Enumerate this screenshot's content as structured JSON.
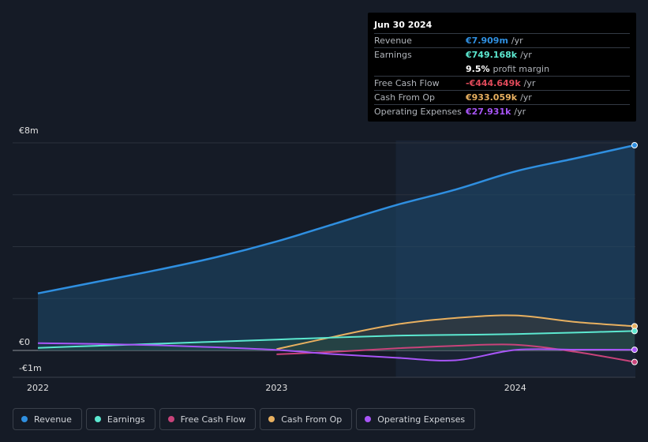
{
  "tooltip": {
    "date": "Jun 30 2024",
    "rows": [
      {
        "label": "Revenue",
        "value": "€7.909m",
        "unit": "/yr",
        "color": "#2f8fe0"
      },
      {
        "label": "Earnings",
        "value": "€749.168k",
        "unit": "/yr",
        "color": "#5ce8d0"
      },
      {
        "label": "",
        "value": "9.5%",
        "unit": "profit margin",
        "color": "#ffffff"
      },
      {
        "label": "Free Cash Flow",
        "value": "-€444.649k",
        "unit": "/yr",
        "color": "#e04a5a"
      },
      {
        "label": "Cash From Op",
        "value": "€933.059k",
        "unit": "/yr",
        "color": "#e8b060"
      },
      {
        "label": "Operating Expenses",
        "value": "€27.931k",
        "unit": "/yr",
        "color": "#a855f7"
      }
    ]
  },
  "legend": [
    {
      "label": "Revenue",
      "color": "#2f8fe0"
    },
    {
      "label": "Earnings",
      "color": "#5ce8d0"
    },
    {
      "label": "Free Cash Flow",
      "color": "#c8437a"
    },
    {
      "label": "Cash From Op",
      "color": "#e8b060"
    },
    {
      "label": "Operating Expenses",
      "color": "#a855f7"
    }
  ],
  "chart_data": {
    "type": "line",
    "title": "",
    "xlabel": "",
    "ylabel": "",
    "y_tick_labels": [
      "€8m",
      "€0",
      "-€1m"
    ],
    "x_tick_labels": [
      "2022",
      "2023",
      "2024"
    ],
    "ylim": [
      -1,
      8
    ],
    "xlim": [
      2022.0,
      2024.5
    ],
    "series": [
      {
        "name": "Revenue",
        "color": "#2f8fe0",
        "x": [
          2022.0,
          2022.25,
          2022.5,
          2022.75,
          2023.0,
          2023.25,
          2023.5,
          2023.75,
          2024.0,
          2024.25,
          2024.5
        ],
        "values": [
          2.2,
          2.65,
          3.1,
          3.6,
          4.2,
          4.9,
          5.6,
          6.2,
          6.9,
          7.4,
          7.909
        ]
      },
      {
        "name": "Earnings",
        "color": "#5ce8d0",
        "x": [
          2022.0,
          2022.25,
          2022.5,
          2022.75,
          2023.0,
          2023.25,
          2023.5,
          2023.75,
          2024.0,
          2024.25,
          2024.5
        ],
        "values": [
          0.1,
          0.18,
          0.26,
          0.34,
          0.42,
          0.5,
          0.57,
          0.6,
          0.63,
          0.69,
          0.749
        ]
      },
      {
        "name": "Free Cash Flow",
        "color": "#c8437a",
        "x": [
          2023.0,
          2023.25,
          2023.5,
          2023.75,
          2024.0,
          2024.25,
          2024.5
        ],
        "values": [
          -0.15,
          -0.05,
          0.08,
          0.18,
          0.22,
          -0.05,
          -0.445
        ]
      },
      {
        "name": "Cash From Op",
        "color": "#e8b060",
        "x": [
          2023.0,
          2023.25,
          2023.5,
          2023.75,
          2024.0,
          2024.25,
          2024.5
        ],
        "values": [
          0.05,
          0.55,
          1.0,
          1.25,
          1.35,
          1.1,
          0.933
        ]
      },
      {
        "name": "Operating Expenses",
        "color": "#a855f7",
        "x": [
          2022.0,
          2022.25,
          2022.5,
          2022.75,
          2023.0,
          2023.25,
          2023.5,
          2023.75,
          2024.0,
          2024.25,
          2024.5
        ],
        "values": [
          0.28,
          0.25,
          0.2,
          0.12,
          0.02,
          -0.15,
          -0.28,
          -0.38,
          0.02,
          0.03,
          0.028
        ]
      }
    ]
  }
}
